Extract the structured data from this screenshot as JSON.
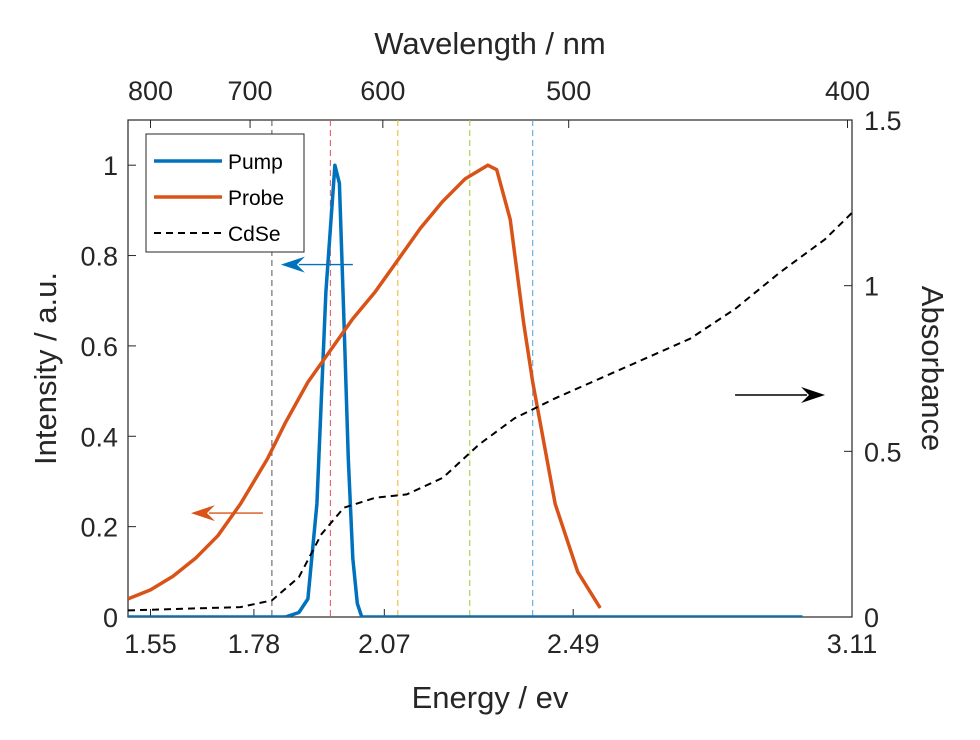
{
  "chart_data": {
    "type": "line",
    "xlabel": "Energy / ev",
    "x2label": "Wavelength / nm",
    "ylabel": "Intensity / a.u.",
    "y2label": "Absorbance",
    "xlim": [
      1.5,
      3.11
    ],
    "ylim": [
      0,
      1.1
    ],
    "y2lim": [
      0,
      1.5
    ],
    "x_ticks": [
      1.55,
      1.78,
      2.07,
      2.49,
      3.11
    ],
    "x_tick_labels": [
      "1.55",
      "1.78",
      "2.07",
      "2.49",
      "3.11"
    ],
    "y_ticks": [
      0,
      0.2,
      0.4,
      0.6,
      0.8,
      1
    ],
    "y_tick_labels": [
      "0",
      "0.2",
      "0.4",
      "0.6",
      "0.8",
      "1"
    ],
    "y2_ticks": [
      0,
      0.5,
      1,
      1.5
    ],
    "y2_tick_labels": [
      "0",
      "0.5",
      "1",
      "1.5"
    ],
    "wavelength_ticks": [
      800,
      700,
      600,
      500,
      400
    ],
    "wavelength_tick_labels": [
      "800",
      "700",
      "600",
      "500",
      "400"
    ],
    "legend_position": "top-left",
    "grid": false,
    "series": [
      {
        "name": "Pump",
        "axis": "left",
        "color": "#0072BD",
        "style": "solid",
        "x": [
          1.5,
          1.85,
          1.88,
          1.9,
          1.92,
          1.94,
          1.95,
          1.96,
          1.97,
          1.98,
          1.99,
          2.0,
          2.01,
          2.02,
          2.03,
          3.0
        ],
        "y": [
          0.0,
          0.0,
          0.01,
          0.04,
          0.25,
          0.72,
          0.86,
          1.0,
          0.96,
          0.66,
          0.35,
          0.13,
          0.03,
          0.0,
          0.0,
          0.0
        ]
      },
      {
        "name": "Probe",
        "axis": "left",
        "color": "#D95319",
        "style": "solid",
        "x": [
          1.5,
          1.55,
          1.6,
          1.65,
          1.7,
          1.75,
          1.78,
          1.81,
          1.85,
          1.9,
          1.95,
          2.0,
          2.05,
          2.1,
          2.15,
          2.2,
          2.25,
          2.3,
          2.32,
          2.35,
          2.38,
          2.4,
          2.45,
          2.5,
          2.55
        ],
        "y": [
          0.04,
          0.06,
          0.09,
          0.13,
          0.18,
          0.25,
          0.3,
          0.35,
          0.43,
          0.52,
          0.59,
          0.66,
          0.72,
          0.79,
          0.86,
          0.92,
          0.97,
          1.0,
          0.99,
          0.88,
          0.65,
          0.52,
          0.25,
          0.1,
          0.02
        ]
      },
      {
        "name": "CdSe",
        "axis": "right",
        "color": "#000000",
        "style": "dashed",
        "x": [
          1.5,
          1.75,
          1.82,
          1.88,
          1.93,
          1.98,
          2.05,
          2.12,
          2.2,
          2.28,
          2.36,
          2.45,
          2.55,
          2.65,
          2.75,
          2.85,
          2.95,
          3.05,
          3.11
        ],
        "y": [
          0.02,
          0.03,
          0.05,
          0.12,
          0.25,
          0.33,
          0.36,
          0.37,
          0.42,
          0.52,
          0.6,
          0.66,
          0.72,
          0.78,
          0.84,
          0.93,
          1.04,
          1.14,
          1.22
        ]
      }
    ],
    "vertical_markers": [
      {
        "x": 1.82,
        "color": "#555555"
      },
      {
        "x": 1.95,
        "color": "#E0505A"
      },
      {
        "x": 2.1,
        "color": "#EDB120"
      },
      {
        "x": 2.26,
        "color": "#9ACD32"
      },
      {
        "x": 2.4,
        "color": "#4F9FD8"
      }
    ],
    "annotation_arrows": [
      {
        "points_to": "left-axis",
        "color": "#0072BD",
        "x_from": 2.0,
        "x_to": 1.84,
        "y": 0.78
      },
      {
        "points_to": "left-axis",
        "color": "#D95319",
        "x_from": 1.8,
        "x_to": 1.64,
        "y": 0.23
      },
      {
        "points_to": "right-axis",
        "color": "#000000",
        "x_from": 2.85,
        "x_to": 3.05,
        "y": 0.67
      }
    ]
  }
}
